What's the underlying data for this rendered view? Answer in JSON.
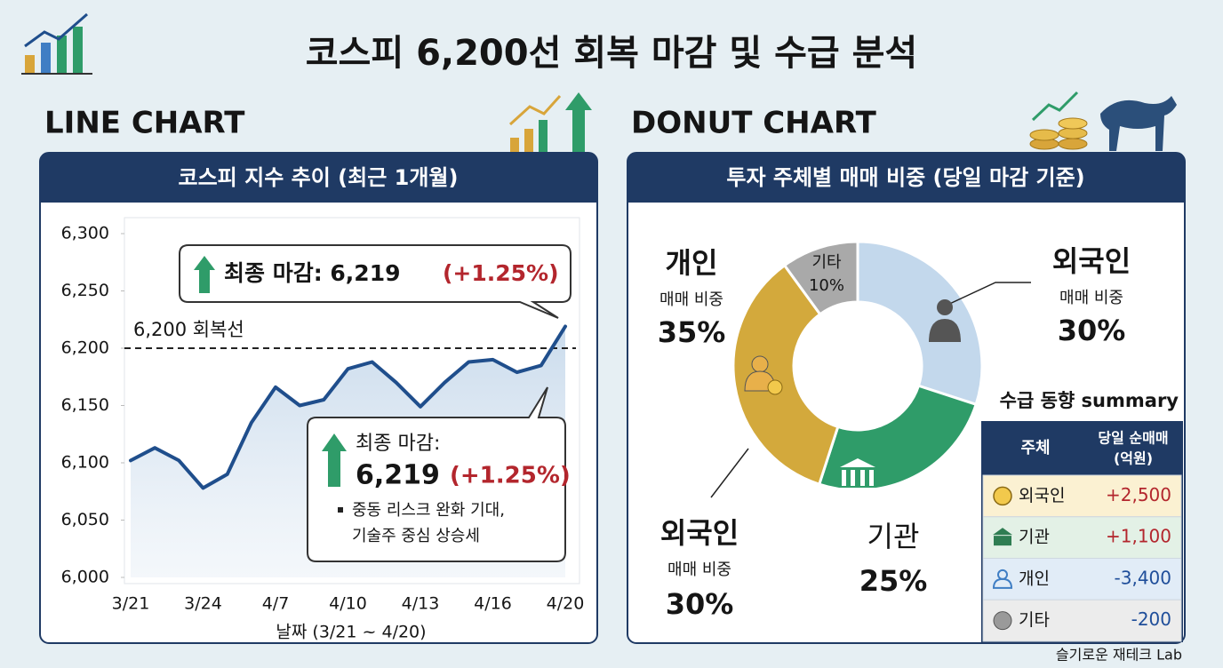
{
  "title": "코스피 6,200선 회복 마감 및 수급 분석",
  "chart_data": [
    {
      "type": "line",
      "section": "LINE CHART",
      "title": "코스피 지수 추이 (최근 1개월)",
      "xlabel": "날짜 (3/21 ~ 4/20)",
      "categories": [
        "3/21",
        null,
        null,
        "3/24",
        null,
        null,
        "4/7",
        null,
        null,
        "4/10",
        null,
        null,
        "4/13",
        null,
        null,
        "4/16",
        null,
        null,
        "4/20"
      ],
      "values": [
        6102,
        6113,
        6102,
        6078,
        6090,
        6135,
        6166,
        6150,
        6155,
        6182,
        6188,
        6170,
        6149,
        6170,
        6188,
        6190,
        6179,
        6185,
        6219
      ],
      "color": "#1f4e8c",
      "ylim": [
        6000,
        6300
      ],
      "yticks": [
        {
          "value": 6000,
          "label": "6,000"
        },
        {
          "value": 6050,
          "label": "6,050"
        },
        {
          "value": 6100,
          "label": "6,100"
        },
        {
          "value": 6150,
          "label": "6,150"
        },
        {
          "value": 6200,
          "label": "6,200"
        },
        {
          "value": 6250,
          "label": "6,250"
        },
        {
          "value": 6300,
          "label": "6,300"
        }
      ],
      "grid": false,
      "reference_line": {
        "value": 6200,
        "label": "6,200 회복선"
      },
      "annotations": [
        {
          "label": "최종 마감: 6,219",
          "change": "(+1.25%)"
        },
        {
          "label": "최종 마감:",
          "value": "6,219",
          "change": "(+1.25%)",
          "notes": [
            "중동 리스크 완화 기대,",
            "기술주 중심 상승세"
          ]
        }
      ]
    },
    {
      "type": "donut",
      "section": "DONUT CHART",
      "title": "투자 주체별 매매 비중 (당일 마감 기준)",
      "categories": [
        "외국인",
        "기관",
        "개인",
        "기타"
      ],
      "values": [
        30,
        25,
        35,
        10
      ],
      "value_labels": [
        "30%",
        "25%",
        "35%",
        "10%"
      ],
      "colors": [
        "#c3d8ec",
        "#2f9c69",
        "#d3a93c",
        "#a9a9a9"
      ],
      "sublabel": "매매 비중",
      "annotations": [
        {
          "label": "외국인",
          "sublabel": "매매 비중",
          "value_label": "30%"
        }
      ]
    }
  ],
  "summary": {
    "title": "수급 동향 summary",
    "columns": [
      "주체",
      "당일 순매매"
    ],
    "unit": "(억원)",
    "rows": [
      [
        "외국인",
        "+2,500"
      ],
      [
        "기관",
        "+1,100"
      ],
      [
        "개인",
        "-3,400"
      ],
      [
        "기타",
        "-200"
      ]
    ]
  },
  "footer": "슬기로운 재테크 Lab"
}
